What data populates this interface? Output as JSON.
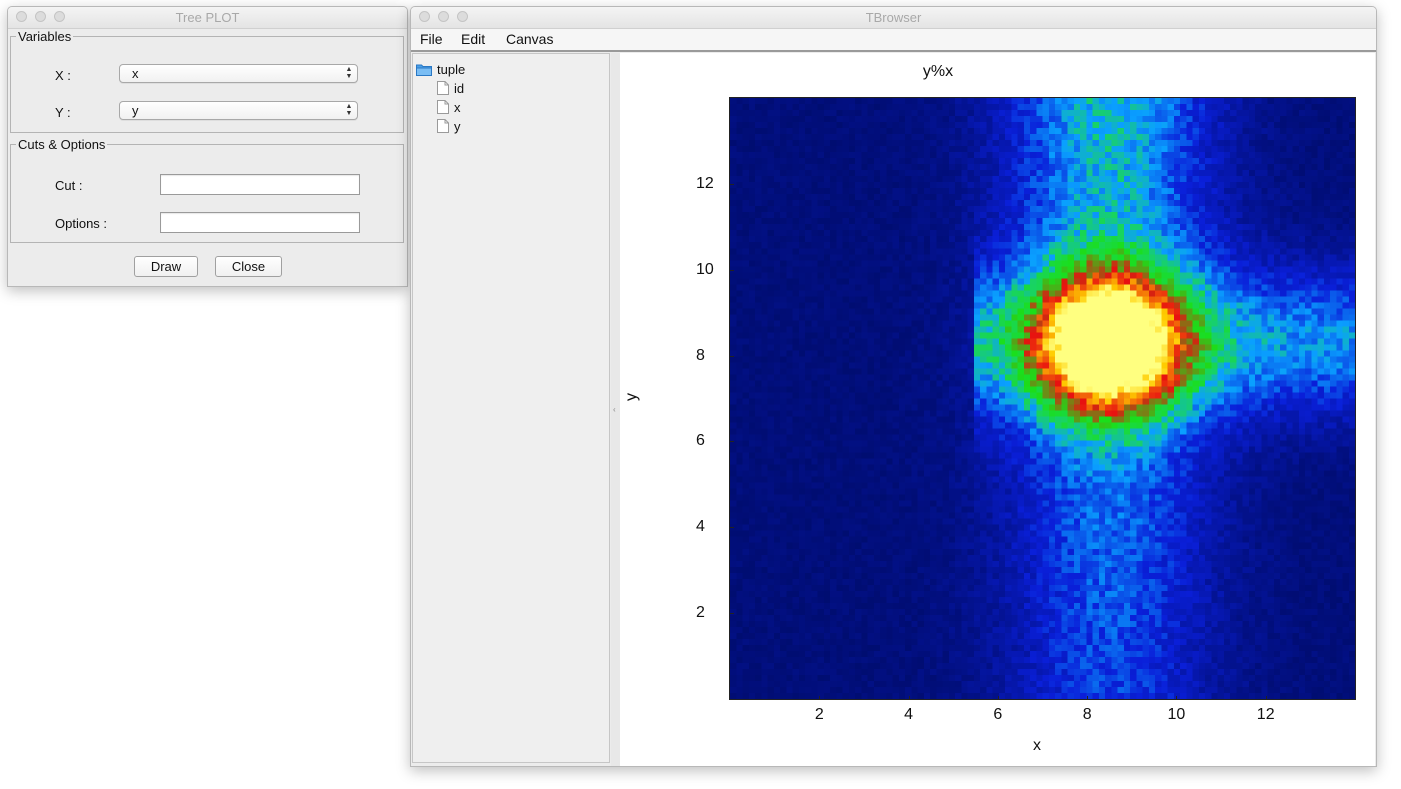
{
  "tree_plot": {
    "title": "Tree PLOT",
    "variables_legend": "Variables",
    "x_label": "X :",
    "x_value": "x",
    "y_label": "Y :",
    "y_value": "y",
    "cuts_legend": "Cuts & Options",
    "cut_label": "Cut :",
    "cut_value": "",
    "options_label": "Options :",
    "options_value": "",
    "draw_button": "Draw",
    "close_button": "Close"
  },
  "browser": {
    "title": "TBrowser",
    "menu": [
      "File",
      "Edit",
      "Canvas"
    ],
    "tree": {
      "root": "tuple",
      "leaves": [
        "id",
        "x",
        "y"
      ]
    }
  },
  "colors": {
    "window_bg": "#ececec",
    "plot_background": "#05107a",
    "folder_icon": "#4a9fe8"
  },
  "chart_data": {
    "type": "heatmap",
    "title": "y%x",
    "xlabel": "x",
    "ylabel": "y",
    "xlim": [
      0,
      14
    ],
    "ylim": [
      0,
      14
    ],
    "xticks": [
      2,
      4,
      6,
      8,
      10,
      12
    ],
    "yticks": [
      2,
      4,
      6,
      8,
      10,
      12
    ],
    "bins": [
      100,
      100
    ],
    "colormap": [
      "#000c6e",
      "#0a1fd9",
      "#0aa0ff",
      "#18d460",
      "#1adf1a",
      "#e81010",
      "#ffcc00",
      "#ffff80"
    ],
    "components": [
      {
        "shape": "gaussian",
        "center_x": 8.5,
        "center_y": 8.3,
        "sigma_x": 1.0,
        "sigma_y": 1.0,
        "peak": 1.0
      },
      {
        "shape": "vertical_band",
        "center_x": 8.5,
        "sigma_x": 1.6,
        "y_from": 0,
        "y_to": 14,
        "peak": 0.35
      },
      {
        "shape": "horizontal_band",
        "center_y": 8.3,
        "sigma_y": 1.2,
        "x_from": 5.5,
        "x_to": 14,
        "peak": 0.28
      }
    ]
  }
}
